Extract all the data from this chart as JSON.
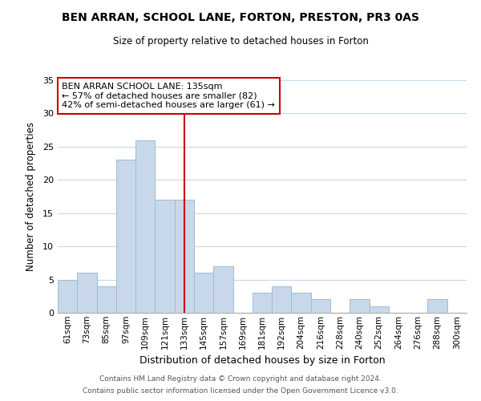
{
  "title": "BEN ARRAN, SCHOOL LANE, FORTON, PRESTON, PR3 0AS",
  "subtitle": "Size of property relative to detached houses in Forton",
  "xlabel": "Distribution of detached houses by size in Forton",
  "ylabel": "Number of detached properties",
  "bar_color": "#c8d8ea",
  "bar_edge_color": "#9bbcd4",
  "categories": [
    "61sqm",
    "73sqm",
    "85sqm",
    "97sqm",
    "109sqm",
    "121sqm",
    "133sqm",
    "145sqm",
    "157sqm",
    "169sqm",
    "181sqm",
    "192sqm",
    "204sqm",
    "216sqm",
    "228sqm",
    "240sqm",
    "252sqm",
    "264sqm",
    "276sqm",
    "288sqm",
    "300sqm"
  ],
  "values": [
    5,
    6,
    4,
    23,
    26,
    17,
    17,
    6,
    7,
    0,
    3,
    4,
    3,
    2,
    0,
    2,
    1,
    0,
    0,
    2,
    0
  ],
  "ylim": [
    0,
    35
  ],
  "yticks": [
    0,
    5,
    10,
    15,
    20,
    25,
    30,
    35
  ],
  "vline_x": 6.0,
  "vline_color": "#cc0000",
  "annotation_title": "BEN ARRAN SCHOOL LANE: 135sqm",
  "annotation_line1": "← 57% of detached houses are smaller (82)",
  "annotation_line2": "42% of semi-detached houses are larger (61) →",
  "annotation_box_color": "#ffffff",
  "annotation_box_edge": "#cc0000",
  "footer1": "Contains HM Land Registry data © Crown copyright and database right 2024.",
  "footer2": "Contains public sector information licensed under the Open Government Licence v3.0.",
  "background_color": "#ffffff",
  "grid_color": "#c8d8ea"
}
